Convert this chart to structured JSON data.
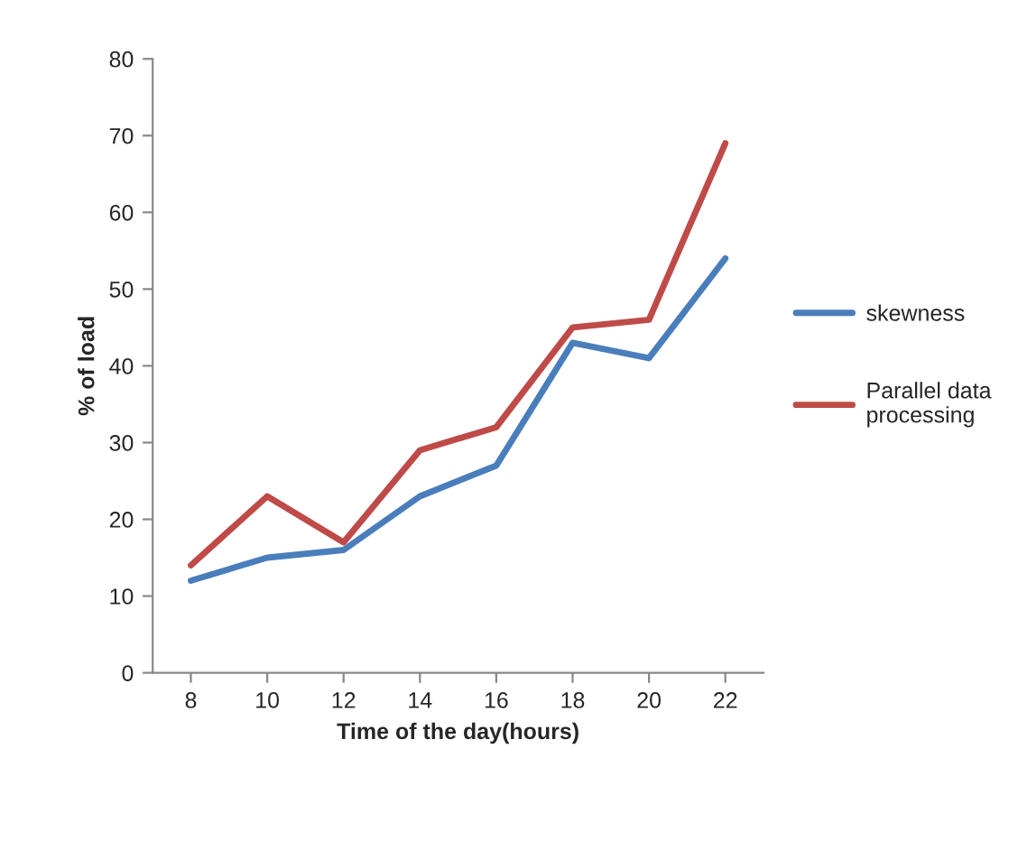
{
  "chart_data": {
    "type": "line",
    "xlabel": "Time of the day(hours)",
    "ylabel": "% of load",
    "categories": [
      "8",
      "10",
      "12",
      "14",
      "16",
      "18",
      "20",
      "22"
    ],
    "series": [
      {
        "name": "skewness",
        "color": "#4a7ebb",
        "values": [
          12,
          15,
          16,
          23,
          27,
          43,
          41,
          54
        ]
      },
      {
        "name": "Parallel data processing",
        "color": "#be4b48",
        "values": [
          14,
          23,
          17,
          29,
          32,
          45,
          46,
          69
        ]
      }
    ],
    "ylim": [
      0,
      80
    ],
    "yticks": [
      0,
      10,
      20,
      30,
      40,
      50,
      60,
      70,
      80
    ],
    "grid": false,
    "legend": "right",
    "marker": "none",
    "line_style": "solid"
  }
}
